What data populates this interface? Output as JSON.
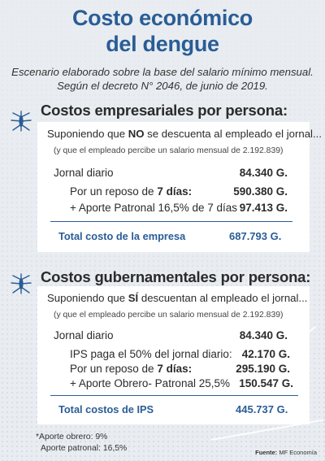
{
  "title": "Costo económico del dengue",
  "subtitle": {
    "line1": "Escenario elaborado sobre la base del salario mínimo mensual.",
    "line2": "Según el decreto N° 2046, de junio de 2019."
  },
  "empresarial": {
    "heading": "Costos empresariales por persona:",
    "lead_prefix": "Suponiendo que ",
    "lead_bold": "NO",
    "lead_suffix": " se descuenta al empleado el jornal...",
    "note": "(y que el empleado percibe un salario mensual de 2.192.839)",
    "rows": [
      {
        "label_prefix": "Jornal diario",
        "label_bold": "",
        "value": "84.340 G."
      },
      {
        "label_prefix": "Por un reposo de ",
        "label_bold": "7 días:",
        "value": "590.380 G."
      },
      {
        "label_prefix": "+ Aporte Patronal 16,5% de 7 días",
        "label_bold": "",
        "value": "97.413 G."
      }
    ],
    "total_label": "Total costo de la empresa",
    "total_value": "687.793 G."
  },
  "gubernamental": {
    "heading": "Costos gubernamentales por persona:",
    "lead_prefix": "Suponiendo que ",
    "lead_bold": "SÍ",
    "lead_suffix": " descuentan al empleado el jornal...",
    "note": "(y que el empleado percibe un salario mensual de 2.192.839)",
    "rows": [
      {
        "label_prefix": "Jornal diario",
        "label_bold": "",
        "value": "84.340 G."
      },
      {
        "label_prefix": "IPS paga el 50% del jornal diario:",
        "label_bold": "",
        "value": "42.170 G."
      },
      {
        "label_prefix": "Por un reposo de ",
        "label_bold": "7 días:",
        "value": "295.190 G."
      },
      {
        "label_prefix": "+ Aporte Obrero- Patronal 25,5%",
        "label_bold": "",
        "value": "150.547 G."
      }
    ],
    "total_label": "Total costos de IPS",
    "total_value": "445.737 G."
  },
  "footnotes": {
    "line1": "*Aporte obrero: 9%",
    "line2": "Aporte patronal: 16,5%"
  },
  "source": {
    "label": "Fuente:",
    "text": " MF Economía"
  },
  "colors": {
    "accent": "#2a5d96",
    "text": "#2b2b2b",
    "background": "#e9edf1"
  },
  "icons": [
    "mosquito-icon"
  ]
}
